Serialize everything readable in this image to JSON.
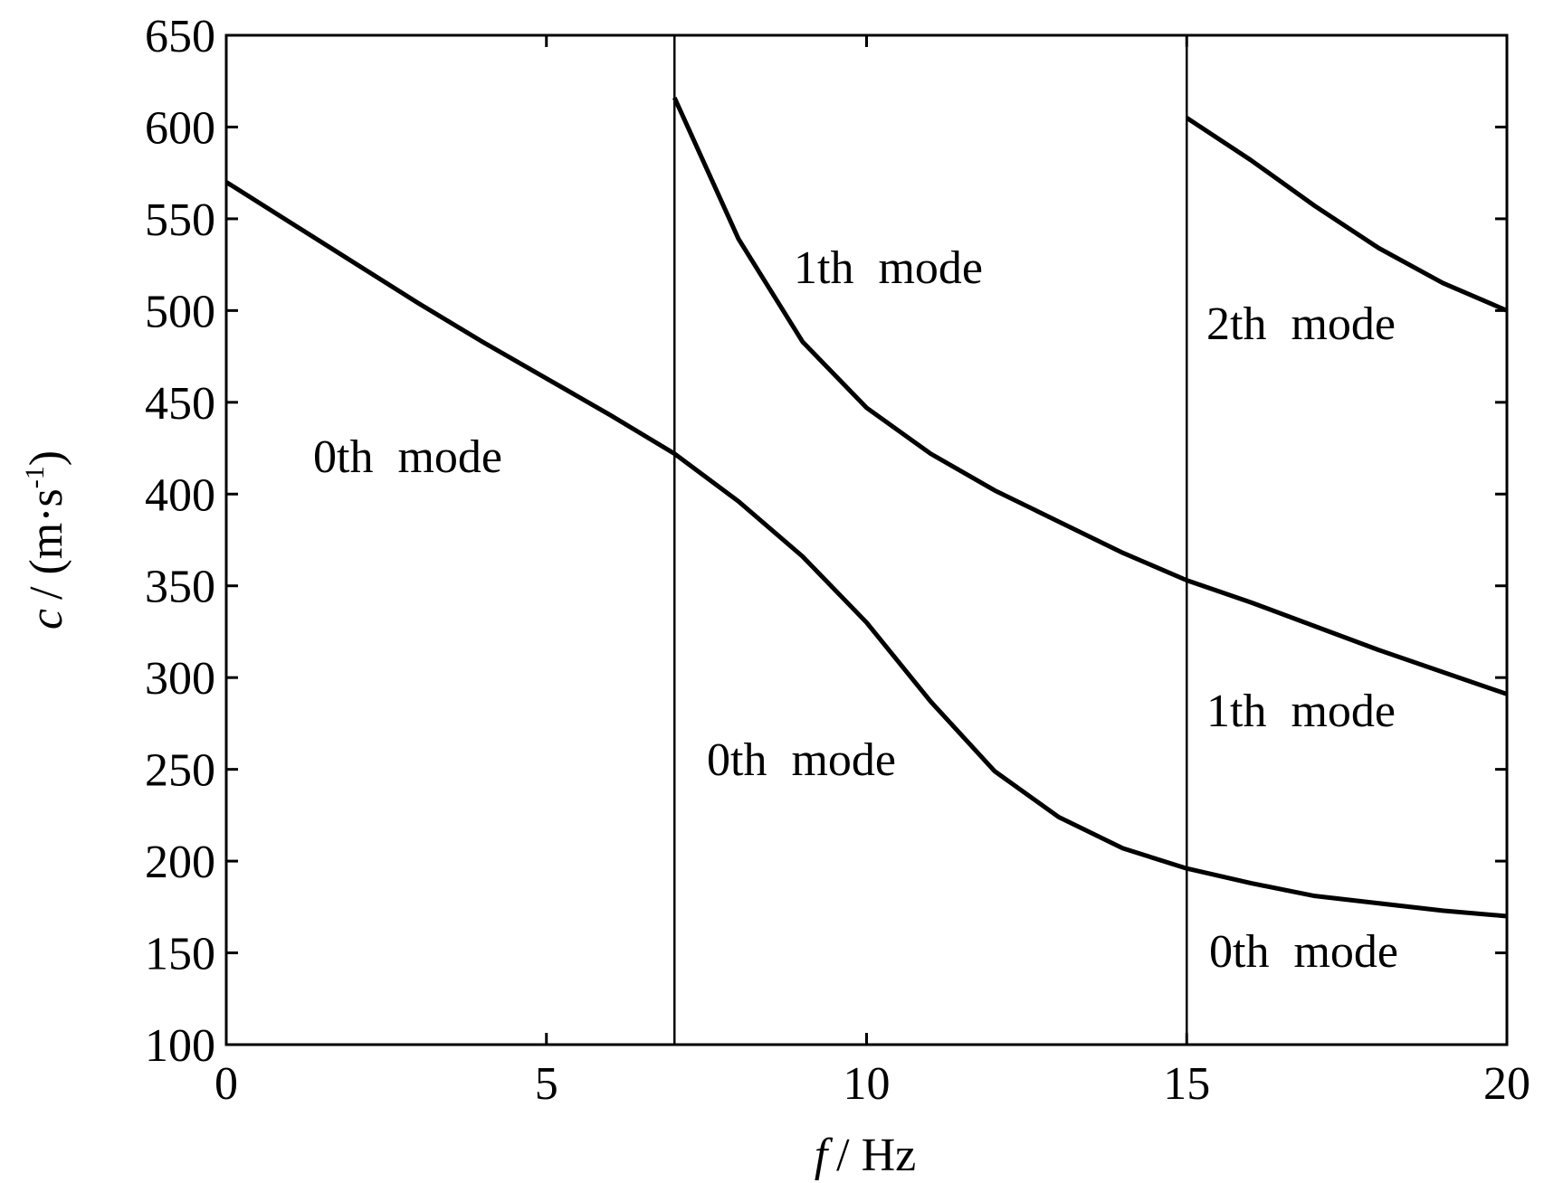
{
  "chart_data": {
    "type": "line",
    "x_label": "f",
    "x_unit": "/ Hz",
    "y_label": "c",
    "y_unit": "/ (m·s",
    "y_unit_sup": "-1",
    "y_unit_end": ")",
    "xlim": [
      0,
      20
    ],
    "xticks": [
      0,
      5,
      10,
      15,
      20
    ],
    "ylim": [
      100,
      650
    ],
    "yticks": [
      100,
      150,
      200,
      250,
      300,
      350,
      400,
      450,
      500,
      550,
      600,
      650
    ],
    "color": "#000000",
    "vlines": [
      7,
      15
    ],
    "series": [
      {
        "x": [
          0,
          1,
          2,
          3,
          4,
          5,
          6,
          7,
          8,
          9,
          10,
          11,
          12,
          13,
          14,
          15,
          16,
          17,
          18,
          19,
          20
        ],
        "values": [
          570,
          548,
          526,
          504,
          483,
          463,
          443,
          422,
          396,
          366,
          330,
          287,
          249,
          224,
          207,
          196,
          188,
          181,
          177,
          173,
          170
        ]
      },
      {
        "x": [
          7,
          8,
          9,
          10,
          11,
          12,
          13,
          14,
          15,
          16,
          17,
          18,
          19,
          20
        ],
        "values": [
          616,
          539,
          483,
          447,
          422,
          402,
          385,
          368,
          353,
          341,
          328,
          315,
          303,
          291
        ]
      },
      {
        "x": [
          15,
          16,
          17,
          18,
          19,
          20
        ],
        "values": [
          605,
          582,
          557,
          534,
          515,
          500
        ]
      }
    ],
    "annotations": [
      "0th mode",
      "1th mode",
      "2th mode",
      "1th mode",
      "0th mode",
      "0th mode"
    ]
  }
}
